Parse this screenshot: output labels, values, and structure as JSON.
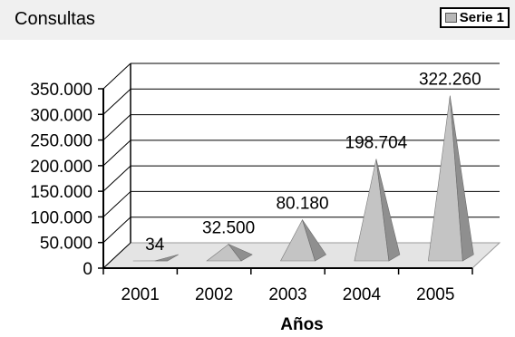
{
  "header": {
    "title": "Consultas"
  },
  "legend": {
    "label": "Serie 1",
    "swatch_color": "#b8b8b8"
  },
  "chart_data": {
    "type": "bar",
    "shape": "pyramid-3d",
    "categories": [
      "2001",
      "2002",
      "2003",
      "2004",
      "2005"
    ],
    "series": [
      {
        "name": "Serie 1",
        "values": [
          34,
          32500,
          80180,
          198704,
          322260
        ]
      }
    ],
    "data_labels": [
      "34",
      "32.500",
      "80.180",
      "198.704",
      "322.260"
    ],
    "y_ticks": [
      0,
      50000,
      100000,
      150000,
      200000,
      250000,
      300000,
      350000
    ],
    "y_tick_labels": [
      "0",
      "50.000",
      "100.000",
      "150.000",
      "200.000",
      "250.000",
      "300.000",
      "350.000"
    ],
    "xlabel": "Años",
    "ylabel": "",
    "ylim": [
      0,
      350000
    ],
    "grid": true,
    "legend_position": "top-right",
    "colors": {
      "pyramid_light": "#c4c4c4",
      "pyramid_dark": "#8f8f8f",
      "floor": "#e4e4e4",
      "grid": "#000000"
    }
  }
}
